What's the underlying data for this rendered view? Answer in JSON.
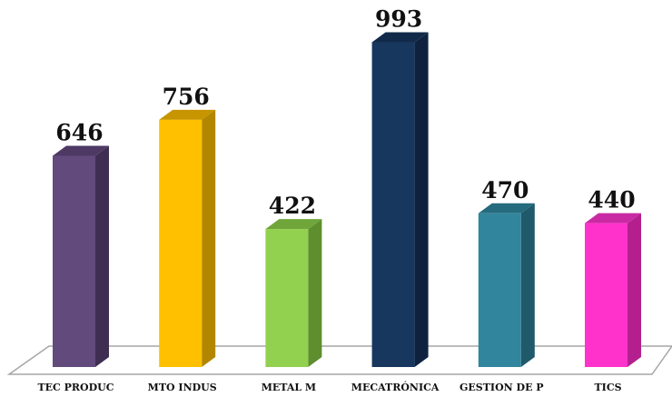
{
  "chart_data": {
    "type": "bar",
    "categories": [
      "TEC PRODUC",
      "MTO INDUS",
      "METAL M",
      "MECATRÓNICA",
      "GESTION DE P",
      "TICS"
    ],
    "values": [
      646,
      756,
      422,
      993,
      470,
      440
    ],
    "data_labels": [
      "646",
      "756",
      "422",
      "993",
      "470",
      "440"
    ],
    "title": "",
    "xlabel": "",
    "ylabel": "",
    "ylim": [
      0,
      1000
    ],
    "grid": false,
    "legend": "none",
    "style": "3d-column",
    "colors": [
      "#634a7c",
      "#ffc000",
      "#92d050",
      "#17375e",
      "#31859c",
      "#ff33cc"
    ],
    "side_colors": [
      "#3f2e52",
      "#b38600",
      "#5e8e2e",
      "#0e2240",
      "#1f5a6a",
      "#b3208e"
    ],
    "top_colors": [
      "#4d3963",
      "#c79500",
      "#70a53a",
      "#112a49",
      "#246b7d",
      "#c92aa3"
    ]
  }
}
